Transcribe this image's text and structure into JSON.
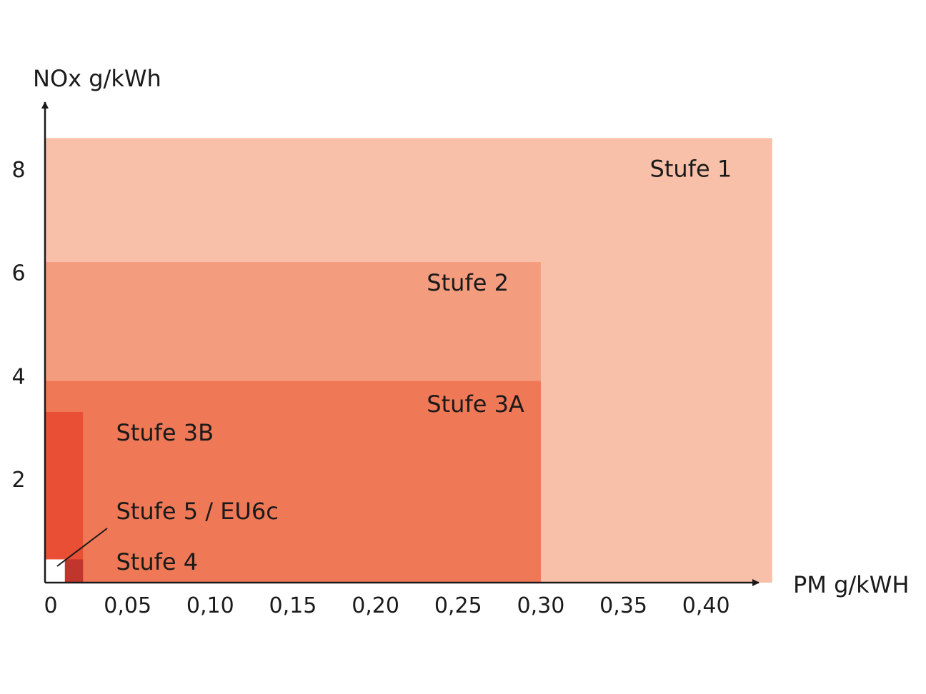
{
  "chart_data": {
    "type": "area",
    "title": "",
    "xlabel": "PM g/kWH",
    "ylabel": "NOx g/kWh",
    "xlim": [
      0,
      0.44
    ],
    "ylim": [
      0,
      8.6
    ],
    "x_ticks": [
      "0",
      "0,05",
      "0,10",
      "0,15",
      "0,20",
      "0,25",
      "0,30",
      "0,35",
      "0,40"
    ],
    "y_ticks": [
      "2",
      "4",
      "6",
      "8"
    ],
    "x_tick_values": [
      0,
      0.05,
      0.1,
      0.15,
      0.2,
      0.25,
      0.3,
      0.35,
      0.4
    ],
    "y_tick_values": [
      2,
      4,
      6,
      8
    ],
    "grid": false,
    "series": [
      {
        "name": "Stufe 1",
        "pm_max": 0.44,
        "nox_max": 8.6,
        "color": "#f8c0a8"
      },
      {
        "name": "Stufe 2",
        "pm_max": 0.3,
        "nox_max": 6.2,
        "color": "#f39c7e"
      },
      {
        "name": "Stufe 3A",
        "pm_max": 0.3,
        "nox_max": 3.9,
        "color": "#ef7856"
      },
      {
        "name": "Stufe 3B",
        "pm_max": 0.023,
        "nox_max": 3.3,
        "color": "#e84f34"
      },
      {
        "name": "Stufe 4",
        "pm_max": 0.023,
        "nox_max": 0.45,
        "color": "#c0362c"
      },
      {
        "name": "Stufe 5 / EU6c",
        "pm_max": 0.012,
        "nox_max": 0.45,
        "color": "#ffffff"
      }
    ]
  }
}
